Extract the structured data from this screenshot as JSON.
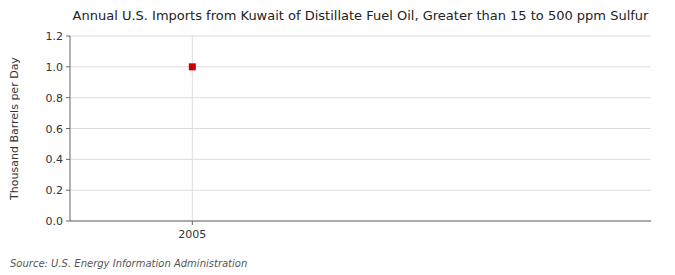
{
  "chart_data": {
    "type": "scatter",
    "title": "Annual U.S. Imports from Kuwait of Distillate Fuel Oil, Greater than 15 to 500 ppm Sulfur",
    "ylabel": "Thousand Barrels per Day",
    "source": "Source: U.S. Energy Information Administration",
    "x": [
      2005
    ],
    "values": [
      1.0
    ],
    "color": "#cc0000",
    "marker": "square",
    "xlim": [
      2004.6,
      2006.5
    ],
    "xticks": [
      2005
    ],
    "ylim": [
      0.0,
      1.2
    ],
    "yticks": [
      {
        "value": 0.0,
        "label": "0.0"
      },
      {
        "value": 0.2,
        "label": "0.2"
      },
      {
        "value": 0.4,
        "label": "0.4"
      },
      {
        "value": 0.6,
        "label": "0.6"
      },
      {
        "value": 0.8,
        "label": "0.8"
      },
      {
        "value": 1.0,
        "label": "1.0"
      },
      {
        "value": 1.2,
        "label": "1.2"
      }
    ],
    "grid": true
  }
}
